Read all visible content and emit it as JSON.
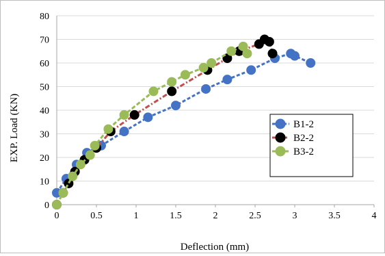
{
  "chart_data": {
    "type": "scatter",
    "title": "",
    "xlabel": "Deflection (mm)",
    "ylabel": "EXP. Load (KN)",
    "xlim": [
      0,
      4
    ],
    "ylim": [
      0,
      80
    ],
    "x_ticks": [
      "0",
      "0.5",
      "1",
      "1.5",
      "2",
      "2.5",
      "3",
      "3.5",
      "4"
    ],
    "y_ticks": [
      "0",
      "10",
      "20",
      "30",
      "40",
      "50",
      "60",
      "70",
      "80"
    ],
    "grid": "horizontal",
    "legend_position": "right-center",
    "series": [
      {
        "name": "B1-2",
        "color": "#4472c4",
        "line_color": "#4472c4",
        "points": [
          {
            "x": 0,
            "y": 5
          },
          {
            "x": 0.12,
            "y": 11
          },
          {
            "x": 0.25,
            "y": 17
          },
          {
            "x": 0.38,
            "y": 22
          },
          {
            "x": 0.56,
            "y": 25
          },
          {
            "x": 0.85,
            "y": 31
          },
          {
            "x": 1.15,
            "y": 37
          },
          {
            "x": 1.5,
            "y": 42
          },
          {
            "x": 1.88,
            "y": 49
          },
          {
            "x": 2.15,
            "y": 53
          },
          {
            "x": 2.45,
            "y": 57
          },
          {
            "x": 2.75,
            "y": 62
          },
          {
            "x": 2.95,
            "y": 64
          },
          {
            "x": 3.0,
            "y": 63
          },
          {
            "x": 3.2,
            "y": 60
          }
        ]
      },
      {
        "name": "B2-2",
        "color": "#000000",
        "line_color": "#c0504d",
        "points": [
          {
            "x": 0,
            "y": 0
          },
          {
            "x": 0.08,
            "y": 5
          },
          {
            "x": 0.15,
            "y": 9
          },
          {
            "x": 0.23,
            "y": 14
          },
          {
            "x": 0.35,
            "y": 19
          },
          {
            "x": 0.5,
            "y": 24
          },
          {
            "x": 0.68,
            "y": 31
          },
          {
            "x": 0.98,
            "y": 38
          },
          {
            "x": 1.45,
            "y": 48
          },
          {
            "x": 1.9,
            "y": 57
          },
          {
            "x": 2.15,
            "y": 62
          },
          {
            "x": 2.3,
            "y": 65
          },
          {
            "x": 2.55,
            "y": 68
          },
          {
            "x": 2.62,
            "y": 70
          },
          {
            "x": 2.68,
            "y": 69
          },
          {
            "x": 2.72,
            "y": 64
          }
        ]
      },
      {
        "name": "B3-2",
        "color": "#9bbb59",
        "line_color": "#9bbb59",
        "points": [
          {
            "x": 0,
            "y": 0
          },
          {
            "x": 0.08,
            "y": 5
          },
          {
            "x": 0.2,
            "y": 12
          },
          {
            "x": 0.3,
            "y": 17
          },
          {
            "x": 0.42,
            "y": 21
          },
          {
            "x": 0.48,
            "y": 25
          },
          {
            "x": 0.65,
            "y": 32
          },
          {
            "x": 0.85,
            "y": 38
          },
          {
            "x": 1.22,
            "y": 48
          },
          {
            "x": 1.45,
            "y": 52
          },
          {
            "x": 1.62,
            "y": 55
          },
          {
            "x": 1.85,
            "y": 58
          },
          {
            "x": 1.95,
            "y": 60
          },
          {
            "x": 2.2,
            "y": 65
          },
          {
            "x": 2.35,
            "y": 67
          },
          {
            "x": 2.4,
            "y": 64
          }
        ]
      }
    ]
  }
}
